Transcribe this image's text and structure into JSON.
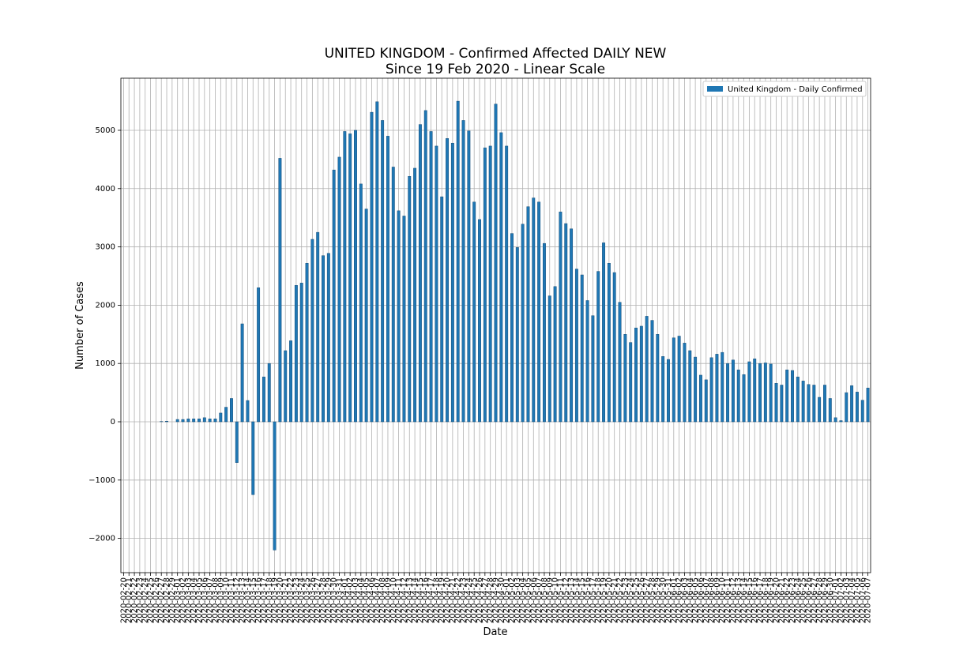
{
  "chart_data": {
    "type": "bar",
    "title": "UNITED KINGDOM - Confirmed Affected DAILY NEW",
    "subtitle": "Since 19 Feb 2020 - Linear Scale",
    "x_label": "Date",
    "y_label": "Number of Cases",
    "categories": [
      "2020-02-20",
      "2020-02-21",
      "2020-02-22",
      "2020-02-23",
      "2020-02-24",
      "2020-02-25",
      "2020-02-26",
      "2020-02-27",
      "2020-02-28",
      "2020-02-29",
      "2020-03-01",
      "2020-03-02",
      "2020-03-03",
      "2020-03-04",
      "2020-03-05",
      "2020-03-06",
      "2020-03-07",
      "2020-03-08",
      "2020-03-09",
      "2020-03-10",
      "2020-03-11",
      "2020-03-12",
      "2020-03-13",
      "2020-03-14",
      "2020-03-15",
      "2020-03-16",
      "2020-03-17",
      "2020-03-18",
      "2020-03-19",
      "2020-03-20",
      "2020-03-21",
      "2020-03-22",
      "2020-03-23",
      "2020-03-24",
      "2020-03-25",
      "2020-03-26",
      "2020-03-27",
      "2020-03-28",
      "2020-03-29",
      "2020-03-30",
      "2020-03-31",
      "2020-04-01",
      "2020-04-02",
      "2020-04-03",
      "2020-04-04",
      "2020-04-05",
      "2020-04-06",
      "2020-04-07",
      "2020-04-08",
      "2020-04-09",
      "2020-04-10",
      "2020-04-11",
      "2020-04-12",
      "2020-04-13",
      "2020-04-14",
      "2020-04-15",
      "2020-04-16",
      "2020-04-17",
      "2020-04-18",
      "2020-04-19",
      "2020-04-20",
      "2020-04-21",
      "2020-04-22",
      "2020-04-23",
      "2020-04-24",
      "2020-04-25",
      "2020-04-26",
      "2020-04-27",
      "2020-04-28",
      "2020-04-29",
      "2020-04-30",
      "2020-05-01",
      "2020-05-02",
      "2020-05-03",
      "2020-05-04",
      "2020-05-05",
      "2020-05-06",
      "2020-05-07",
      "2020-05-08",
      "2020-05-09",
      "2020-05-10",
      "2020-05-11",
      "2020-05-12",
      "2020-05-13",
      "2020-05-14",
      "2020-05-15",
      "2020-05-16",
      "2020-05-17",
      "2020-05-18",
      "2020-05-19",
      "2020-05-20",
      "2020-05-21",
      "2020-05-22",
      "2020-05-23",
      "2020-05-24",
      "2020-05-25",
      "2020-05-26",
      "2020-05-27",
      "2020-05-28",
      "2020-05-29",
      "2020-05-30",
      "2020-05-31",
      "2020-06-01",
      "2020-06-02",
      "2020-06-03",
      "2020-06-04",
      "2020-06-05",
      "2020-06-06",
      "2020-06-07",
      "2020-06-08",
      "2020-06-09",
      "2020-06-10",
      "2020-06-11",
      "2020-06-12",
      "2020-06-13",
      "2020-06-14",
      "2020-06-15",
      "2020-06-16",
      "2020-06-17",
      "2020-06-18",
      "2020-06-19",
      "2020-06-20",
      "2020-06-21",
      "2020-06-22",
      "2020-06-23",
      "2020-06-24",
      "2020-06-25",
      "2020-06-26",
      "2020-06-27",
      "2020-06-28",
      "2020-06-29",
      "2020-06-30",
      "2020-07-01",
      "2020-07-02",
      "2020-07-03",
      "2020-07-04",
      "2020-07-05",
      "2020-07-06",
      "2020-07-07"
    ],
    "series": [
      {
        "name": "United Kingdom - Daily Confirmed",
        "color": "#1f77b4",
        "values": [
          0,
          0,
          0,
          0,
          0,
          0,
          0,
          5,
          10,
          0,
          40,
          40,
          50,
          50,
          50,
          70,
          50,
          50,
          150,
          250,
          400,
          -700,
          1680,
          365,
          -1250,
          2300,
          770,
          1000,
          -2200,
          4520,
          1220,
          1390,
          2340,
          2380,
          2720,
          3130,
          3250,
          2850,
          2890,
          4320,
          4540,
          4980,
          4940,
          5000,
          4080,
          3650,
          5310,
          5490,
          5170,
          4900,
          4370,
          3620,
          3530,
          4210,
          4350,
          5100,
          5340,
          4980,
          4730,
          3860,
          4860,
          4780,
          5500,
          5170,
          4990,
          3770,
          3470,
          4700,
          4730,
          5450,
          4960,
          4730,
          3230,
          2990,
          3390,
          3690,
          3840,
          3770,
          3060,
          2160,
          2320,
          3600,
          3400,
          3310,
          2620,
          2520,
          2080,
          1820,
          2580,
          3070,
          2720,
          2560,
          2050,
          1500,
          1360,
          1610,
          1640,
          1810,
          1740,
          1500,
          1120,
          1070,
          1440,
          1470,
          1350,
          1220,
          1110,
          800,
          720,
          1100,
          1160,
          1190,
          1000,
          1060,
          890,
          810,
          1030,
          1080,
          1000,
          1010,
          990,
          660,
          630,
          890,
          880,
          770,
          700,
          640,
          630,
          420,
          630,
          400,
          70,
          20,
          500,
          620,
          510,
          370,
          580
        ]
      }
    ],
    "ylim": [
      -2588,
      5894
    ],
    "yticks": [
      {
        "value": -2000,
        "label": "−2000"
      },
      {
        "value": -1000,
        "label": "−1000"
      },
      0,
      1000,
      2000,
      3000,
      4000,
      5000
    ],
    "grid": true,
    "legend": "upper right"
  }
}
